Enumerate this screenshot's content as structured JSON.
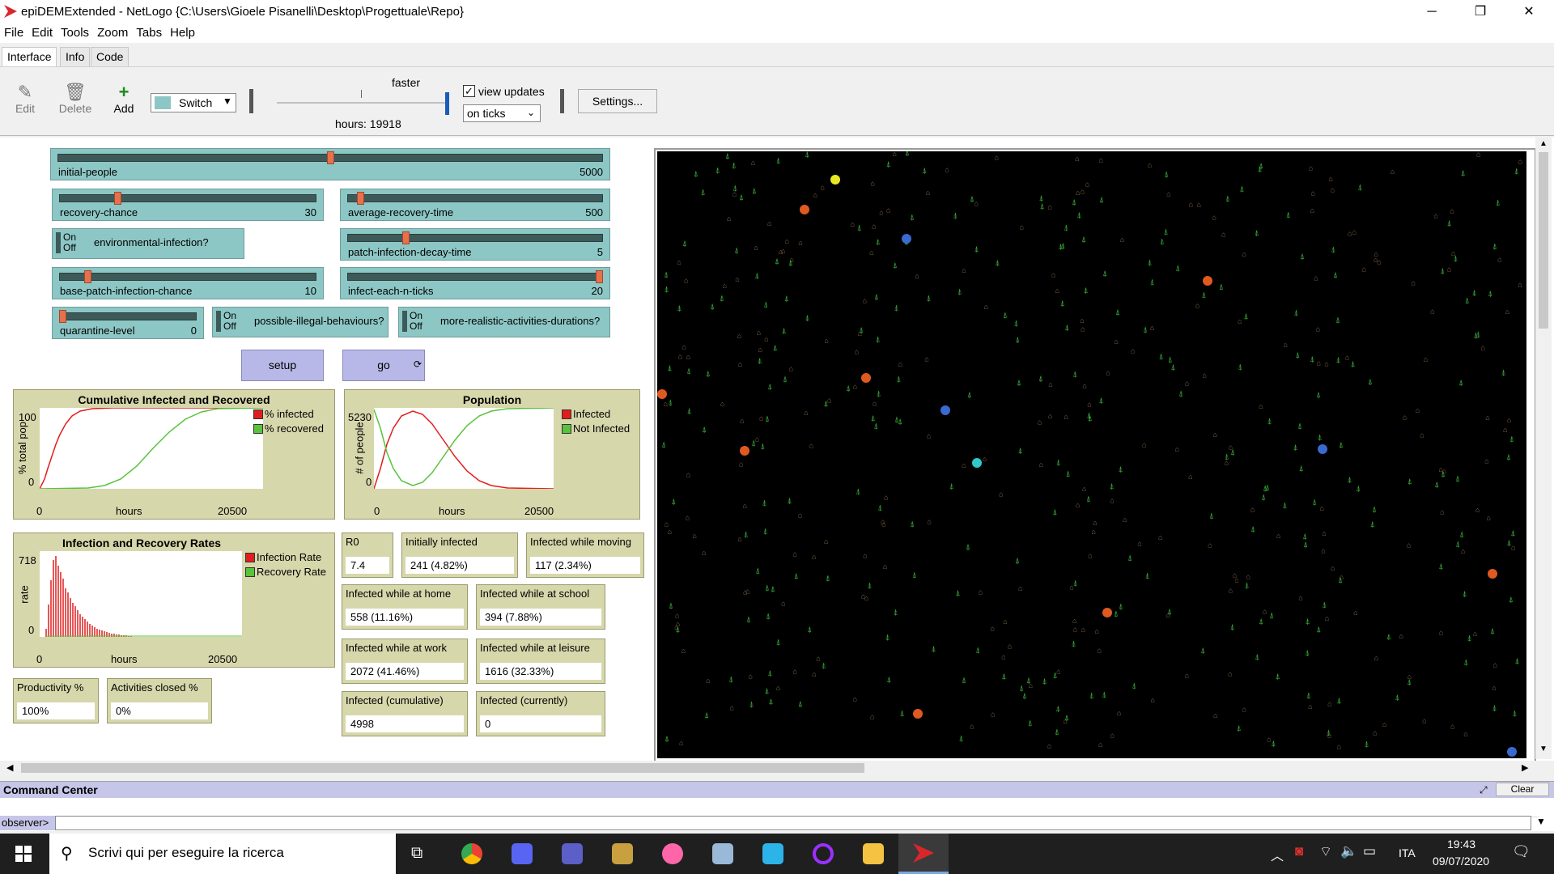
{
  "window": {
    "title": "epiDEMExtended - NetLogo {C:\\Users\\Gioele Pisanelli\\Desktop\\Progettuale\\Repo}",
    "minimize": "─",
    "maximize": "❐",
    "close": "✕"
  },
  "menu": [
    "File",
    "Edit",
    "Tools",
    "Zoom",
    "Tabs",
    "Help"
  ],
  "tabs": [
    "Interface",
    "Info",
    "Code"
  ],
  "toolbar": {
    "edit": "Edit",
    "delete": "Delete",
    "add": "Add",
    "widget_select": "Switch",
    "speed_label": "faster",
    "hours": "hours: 19918",
    "view_updates": "view updates",
    "update_mode": "on ticks",
    "settings": "Settings..."
  },
  "sliders": {
    "initial_people": {
      "label": "initial-people",
      "value": "5000",
      "fraction": 0.5
    },
    "recovery_chance": {
      "label": "recovery-chance",
      "value": "30",
      "fraction": 0.22
    },
    "average_recovery_time": {
      "label": "average-recovery-time",
      "value": "500",
      "fraction": 0.04
    },
    "patch_infection_decay_time": {
      "label": "patch-infection-decay-time",
      "value": "5",
      "fraction": 0.22
    },
    "base_patch_infection_chance": {
      "label": "base-patch-infection-chance",
      "value": "10",
      "fraction": 0.1
    },
    "infect_each_n_ticks": {
      "label": "infect-each-n-ticks",
      "value": "20",
      "fraction": 1.0
    },
    "quarantine_level": {
      "label": "quarantine-level",
      "value": "0",
      "fraction": 0.0
    }
  },
  "switches": {
    "on": "On",
    "off": "Off",
    "environmental_infection": "environmental-infection?",
    "possible_illegal_behaviours": "possible-illegal-behaviours?",
    "more_realistic_activities_durations": "more-realistic-activities-durations?"
  },
  "buttons": {
    "setup": "setup",
    "go": "go"
  },
  "plots": {
    "cumulative": {
      "title": "Cumulative Infected and Recovered",
      "ylabel": "% total pop",
      "xlabel": "hours",
      "ymax": "100",
      "ymin": "0",
      "xmin": "0",
      "xmax": "20500",
      "legend": [
        {
          "name": "% infected",
          "color": "#e01e1e"
        },
        {
          "name": "% recovered",
          "color": "#58c33b"
        }
      ]
    },
    "population": {
      "title": "Population",
      "ylabel": "# of people",
      "xlabel": "hours",
      "ymax": "5230",
      "ymin": "0",
      "xmin": "0",
      "xmax": "20500",
      "legend": [
        {
          "name": "Infected",
          "color": "#e01e1e"
        },
        {
          "name": "Not Infected",
          "color": "#58c33b"
        }
      ]
    },
    "rates": {
      "title": "Infection and Recovery Rates",
      "ylabel": "rate",
      "xlabel": "hours",
      "ymax": "718",
      "ymin": "0",
      "xmin": "0",
      "xmax": "20500",
      "legend": [
        {
          "name": "Infection Rate",
          "color": "#e01e1e"
        },
        {
          "name": "Recovery Rate",
          "color": "#58c33b"
        }
      ]
    }
  },
  "monitors": {
    "r0": {
      "label": "R0",
      "value": "7.4"
    },
    "initially_infected": {
      "label": "Initially infected",
      "value": "241  (4.82%)"
    },
    "infected_moving": {
      "label": "Infected while moving",
      "value": "117  (2.34%)"
    },
    "infected_home": {
      "label": "Infected while at home",
      "value": "558  (11.16%)"
    },
    "infected_school": {
      "label": "Infected while at school",
      "value": "394  (7.88%)"
    },
    "infected_work": {
      "label": "Infected while at work",
      "value": "2072  (41.46%)"
    },
    "infected_leisure": {
      "label": "Infected while at leisure",
      "value": "1616  (32.33%)"
    },
    "productivity": {
      "label": "Productivity %",
      "value": "100%"
    },
    "activities_closed": {
      "label": "Activities closed %",
      "value": "0%"
    },
    "infected_cumulative": {
      "label": "Infected (cumulative)",
      "value": "4998"
    },
    "infected_currently": {
      "label": "Infected (currently)",
      "value": "0"
    }
  },
  "command_center": {
    "title": "Command Center",
    "clear": "Clear",
    "prompt": "observer>"
  },
  "taskbar": {
    "search_placeholder": "Scrivi qui per eseguire la ricerca",
    "language": "ITA",
    "time": "19:43",
    "date": "09/07/2020"
  },
  "colors": {
    "slider_bg": "#8cc7c5",
    "button_bg": "#b8b8e8",
    "plot_bg": "#d7d7ac",
    "infected": "#e01e1e",
    "recovered": "#58c33b"
  }
}
